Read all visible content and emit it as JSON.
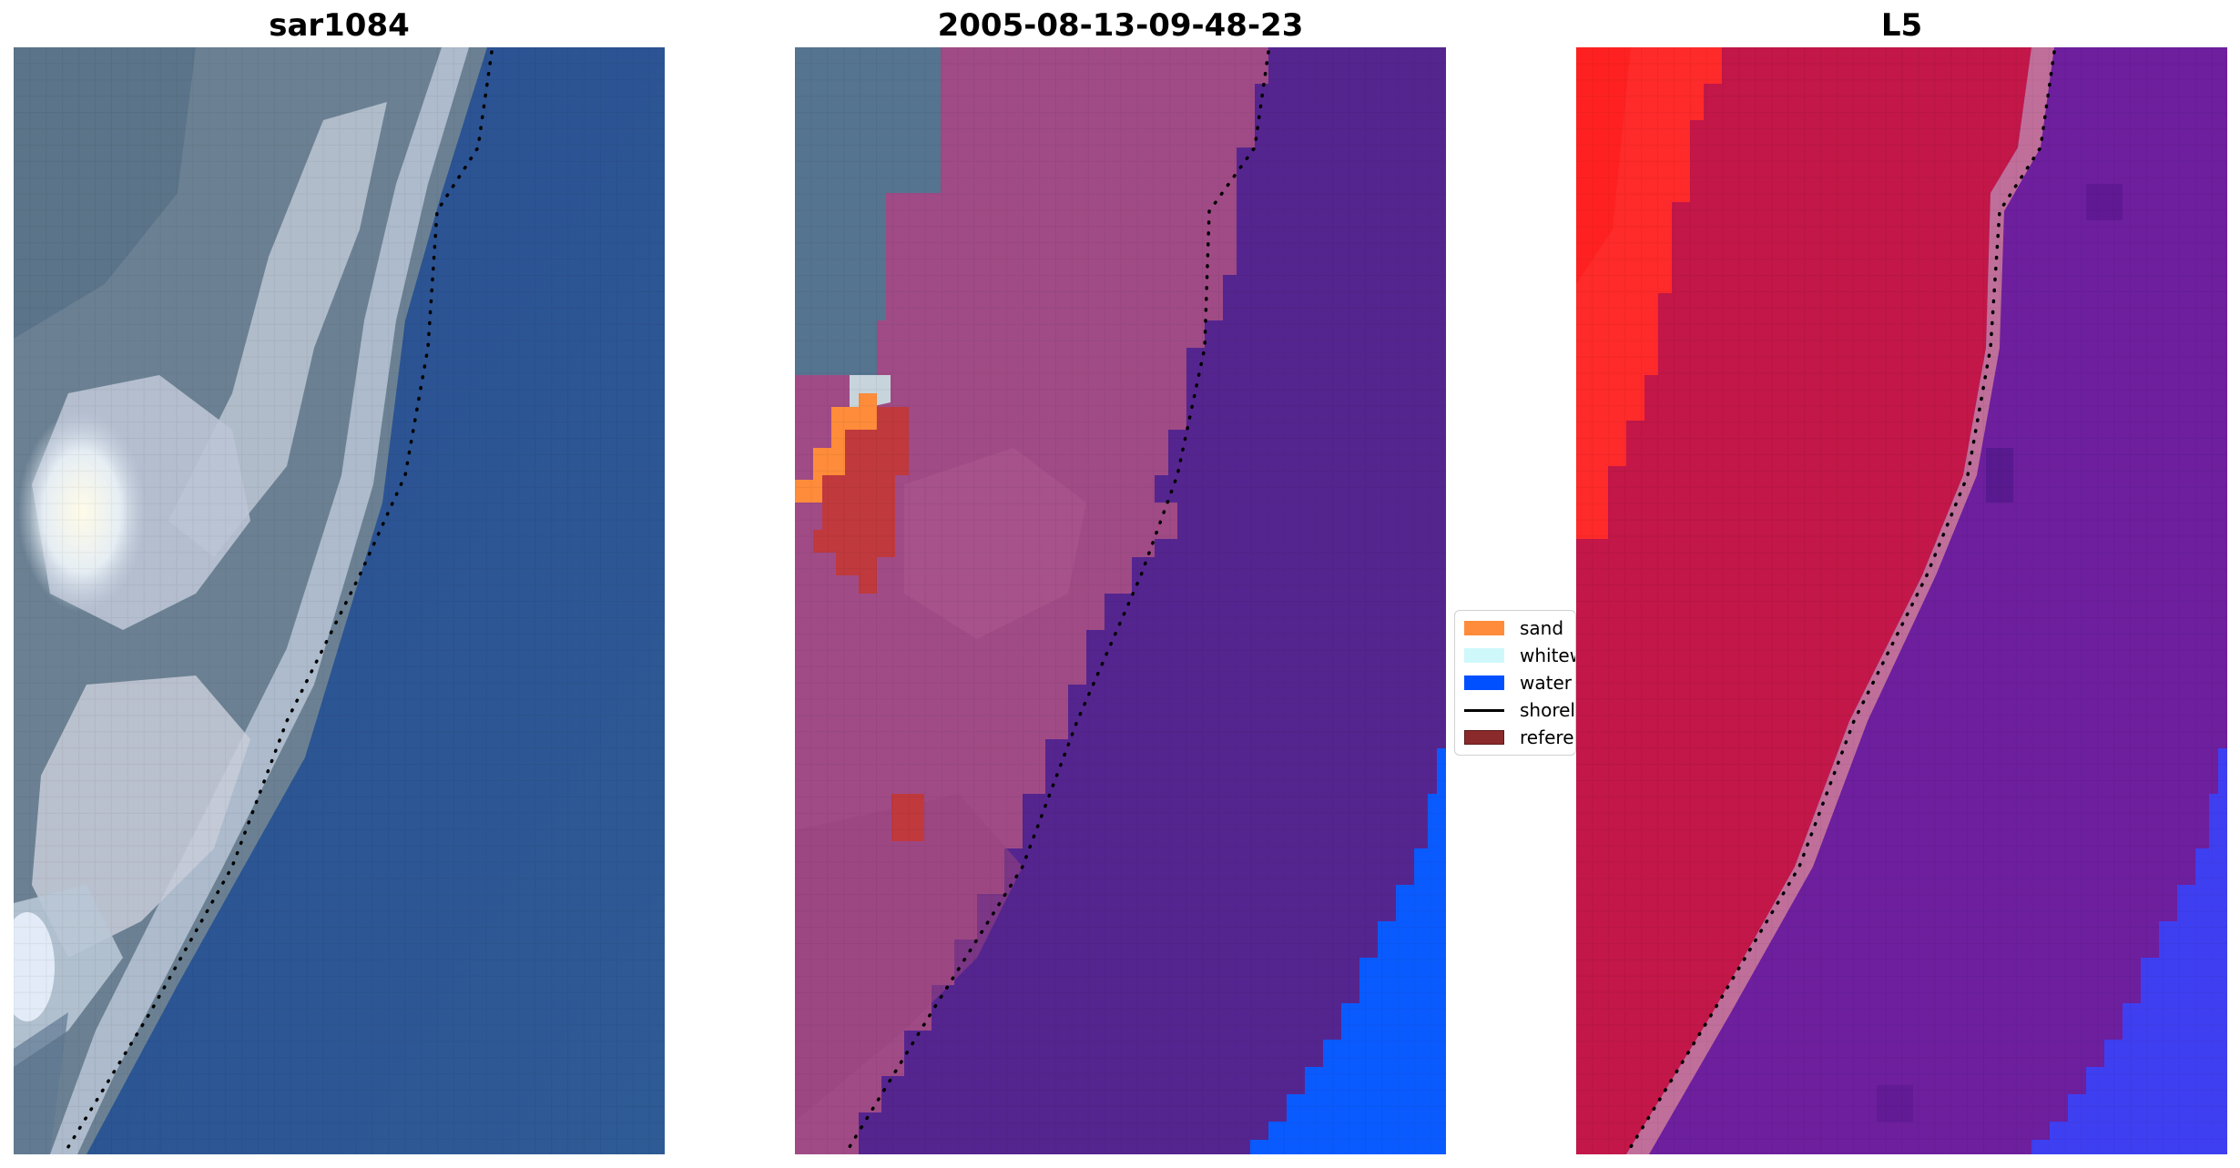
{
  "panels": [
    {
      "title": "sar1084"
    },
    {
      "title": "2005-08-13-09-48-23"
    },
    {
      "title": "L5"
    }
  ],
  "legend": {
    "items": [
      {
        "label": "sand",
        "color": "#ff8c3a",
        "kind": "swatch"
      },
      {
        "label": "whitewater",
        "color": "#cff8fb",
        "kind": "swatch"
      },
      {
        "label": "water",
        "color": "#0050ff",
        "kind": "swatch"
      },
      {
        "label": "shoreline",
        "color": "#000000",
        "kind": "line"
      },
      {
        "label": "reference shoreline",
        "color": "#8b2a2a",
        "kind": "swatch"
      }
    ]
  },
  "colors": {
    "ocean_rgb": "#2c5291",
    "beach_rgb": "#b9c4d8",
    "land_rgb": "#6c8192",
    "overlay_land": "#a34b86",
    "overlay_water": "#55258f",
    "open_water": "#0a5bff",
    "l5_land": "#c41a48",
    "l5_red": "#ff2a2a",
    "l5_water": "#6a1fa0",
    "l5_blue": "#3c3cf0",
    "reference_red": "#c0393d"
  }
}
